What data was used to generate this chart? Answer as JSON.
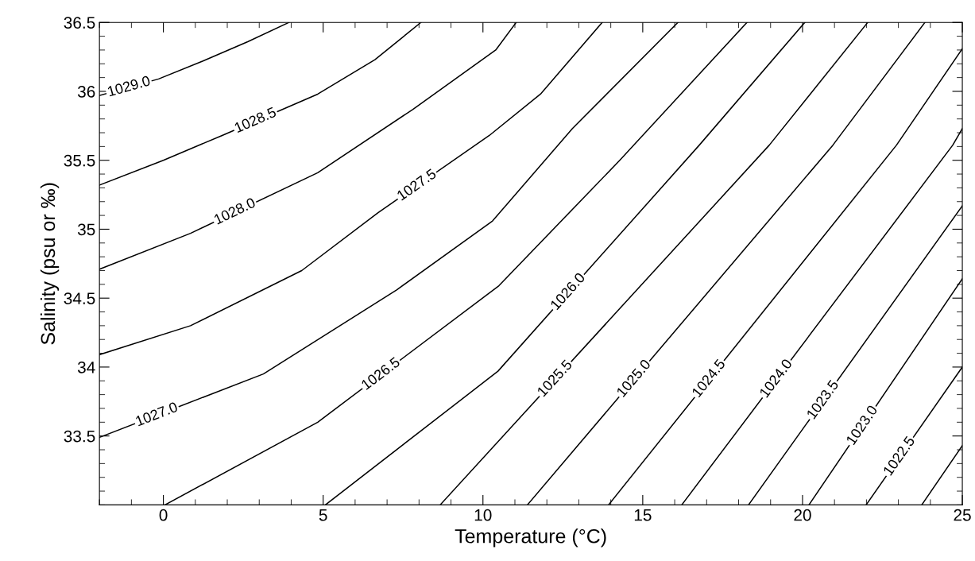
{
  "chart_data": {
    "type": "line",
    "xlabel": "Temperature (°C)",
    "ylabel": "Salinity (psu or ‰)",
    "xlim": [
      -2,
      25
    ],
    "ylim": [
      33,
      36.5
    ],
    "xticks": [
      0,
      5,
      10,
      15,
      20,
      25
    ],
    "yticks": [
      33.5,
      34,
      34.5,
      35,
      35.5,
      36,
      36.5
    ],
    "grid": false,
    "legend": false,
    "marker": "none",
    "line_style": "solid",
    "series": [
      {
        "name": "1029.0",
        "color": "#000000",
        "x": [
          -2,
          -0.15,
          1.24,
          2.64,
          3.93
        ],
        "values": [
          35.97,
          36.09,
          36.22,
          36.36,
          36.5
        ]
      },
      {
        "name": "1028.5",
        "color": "#000000",
        "x": [
          -2,
          0,
          1.84,
          4.83,
          6.62,
          8.06
        ],
        "values": [
          35.32,
          35.5,
          35.68,
          35.98,
          36.23,
          36.5
        ]
      },
      {
        "name": "1028.0",
        "color": "#000000",
        "x": [
          -2,
          0.85,
          4.83,
          7.81,
          10.4,
          11.04
        ],
        "values": [
          34.71,
          34.97,
          35.41,
          35.87,
          36.3,
          36.5
        ]
      },
      {
        "name": "1027.5",
        "color": "#000000",
        "x": [
          -2,
          0.85,
          4.33,
          6.72,
          10.2,
          11.8,
          13.73
        ],
        "values": [
          34.09,
          34.3,
          34.7,
          35.12,
          35.68,
          35.98,
          36.5
        ]
      },
      {
        "name": "1027.0",
        "color": "#000000",
        "x": [
          -2,
          3.13,
          7.3,
          10.3,
          12.8,
          16.1
        ],
        "values": [
          33.49,
          33.95,
          34.56,
          35.06,
          35.73,
          36.5
        ]
      },
      {
        "name": "1026.5",
        "color": "#000000",
        "x": [
          0.05,
          4.83,
          10.5,
          14.28,
          18.26
        ],
        "values": [
          33.0,
          33.6,
          34.59,
          35.5,
          36.5
        ]
      },
      {
        "name": "1026.0",
        "color": "#000000",
        "x": [
          5.07,
          10.47,
          16.77,
          20.07
        ],
        "values": [
          33.0,
          33.97,
          35.61,
          36.5
        ]
      },
      {
        "name": "1025.5",
        "color": "#000000",
        "x": [
          8.66,
          18.96,
          22.04
        ],
        "values": [
          33.0,
          35.61,
          36.5
        ]
      },
      {
        "name": "1025.0",
        "color": "#000000",
        "x": [
          11.39,
          20.95,
          23.83
        ],
        "values": [
          33.0,
          35.61,
          36.5
        ]
      },
      {
        "name": "1024.5",
        "color": "#000000",
        "x": [
          13.93,
          22.94,
          25
        ],
        "values": [
          33.0,
          35.61,
          36.31
        ]
      },
      {
        "name": "1024.0",
        "color": "#000000",
        "x": [
          16.22,
          24.7,
          25
        ],
        "values": [
          33.0,
          35.61,
          35.73
        ]
      },
      {
        "name": "1023.5",
        "color": "#000000",
        "x": [
          18.31,
          25
        ],
        "values": [
          33.0,
          35.17
        ]
      },
      {
        "name": "1023.0",
        "color": "#000000",
        "x": [
          20.2,
          25
        ],
        "values": [
          33.0,
          34.64
        ]
      },
      {
        "name": "1022.5",
        "color": "#000000",
        "x": [
          21.99,
          25
        ],
        "values": [
          33.0,
          34.0
        ]
      },
      {
        "color": "#000000",
        "x": [
          23.73,
          25
        ],
        "values": [
          33.0,
          33.43
        ]
      }
    ]
  }
}
